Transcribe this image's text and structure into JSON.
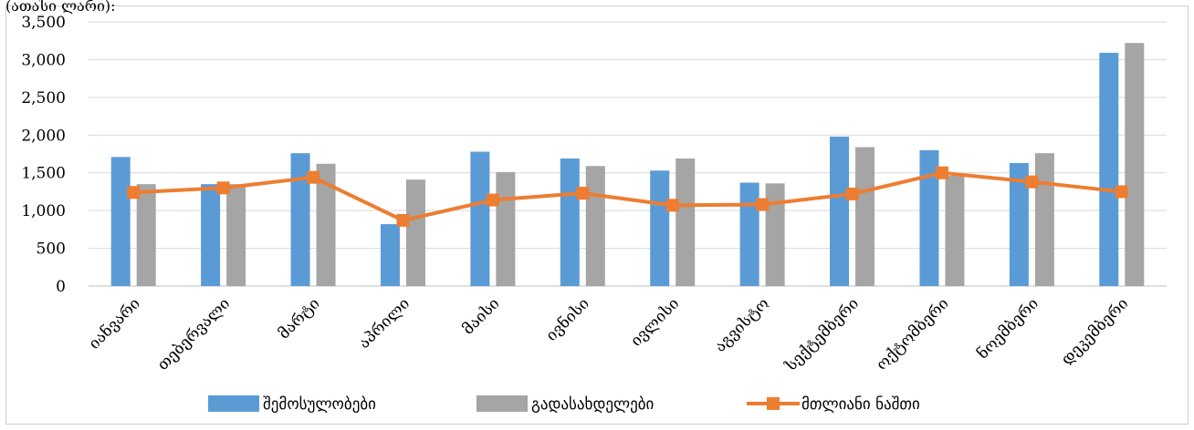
{
  "caption": "(ათასი ლარი):",
  "chart_data": {
    "type": "bar",
    "categories": [
      "იანვარი",
      "თებერვალი",
      "მარტი",
      "აპრილი",
      "მაისი",
      "ივნისი",
      "ივლისი",
      "აგვისტო",
      "სექტემბერი",
      "ოქტომბერი",
      "ნოემბერი",
      "დეკემბერი"
    ],
    "series": [
      {
        "name": "შემოსულობები",
        "kind": "bar",
        "color": "#5b9bd5",
        "values": [
          1710,
          1350,
          1760,
          820,
          1780,
          1690,
          1530,
          1370,
          1980,
          1800,
          1630,
          3090
        ]
      },
      {
        "name": "გადასახდელები",
        "kind": "bar",
        "color": "#a5a5a5",
        "values": [
          1350,
          1350,
          1620,
          1410,
          1510,
          1590,
          1690,
          1360,
          1840,
          1460,
          1760,
          3220
        ]
      },
      {
        "name": "მთლიანი ნაშთი",
        "kind": "line",
        "color": "#ed7d31",
        "values": [
          1240,
          1300,
          1440,
          870,
          1140,
          1230,
          1070,
          1080,
          1220,
          1500,
          1380,
          1250
        ]
      }
    ],
    "yticks": [
      "0",
      "500",
      "1,000",
      "1,500",
      "2,000",
      "2,500",
      "3,000",
      "3,500"
    ],
    "ylim": [
      0,
      3500
    ],
    "grid": true,
    "legend_position": "bottom"
  }
}
